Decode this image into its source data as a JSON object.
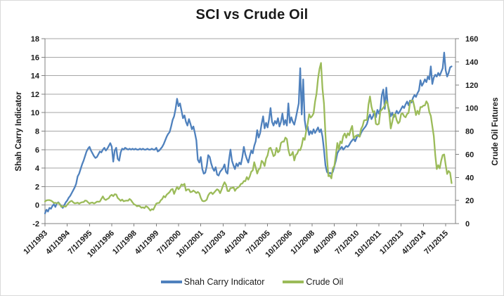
{
  "title": "SCI vs Crude Oil",
  "colors": {
    "sci_line": "#4F81BD",
    "crude_line": "#9BBB59",
    "gridline": "#A6A6A6",
    "axis_line": "#808080",
    "text": "#1a1a1a",
    "frame_border": "#d9d9d9",
    "background": "#ffffff"
  },
  "left_axis": {
    "label": "Shah  Carry  Indicator",
    "min": -2,
    "max": 18,
    "step": 2,
    "ticks": [
      "18",
      "16",
      "14",
      "12",
      "10",
      "8",
      "6",
      "4",
      "2",
      "0",
      "-2"
    ]
  },
  "right_axis": {
    "label": "Crude Oil Futures",
    "min": 0,
    "max": 160,
    "step": 20,
    "ticks": [
      "160",
      "140",
      "120",
      "100",
      "80",
      "60",
      "40",
      "20",
      "0"
    ]
  },
  "x_axis": {
    "tick_labels": [
      "1/1/1993",
      "4/1/1994",
      "7/1/1995",
      "10/1/1996",
      "1/1/1998",
      "4/1/1999",
      "7/1/2000",
      "10/1/2001",
      "1/1/2003",
      "4/1/2004",
      "7/1/2005",
      "10/1/2006",
      "1/1/2008",
      "4/1/2009",
      "7/1/2010",
      "10/1/2011",
      "1/1/2013",
      "4/1/2014",
      "7/1/2015"
    ],
    "tick_interval_months": 15
  },
  "legend": [
    {
      "label": "Shah Carry Indicator",
      "color_key": "sci_line"
    },
    {
      "label": "Crude Oil",
      "color_key": "crude_line"
    }
  ],
  "chart_data": {
    "type": "line",
    "title": "SCI vs Crude Oil",
    "x_start": "1/1/1993",
    "x_frequency": "monthly",
    "x_tick_labels": [
      "1/1/1993",
      "4/1/1994",
      "7/1/1995",
      "10/1/1996",
      "1/1/1998",
      "4/1/1999",
      "7/1/2000",
      "10/1/2001",
      "1/1/2003",
      "4/1/2004",
      "7/1/2005",
      "10/1/2006",
      "1/1/2008",
      "4/1/2009",
      "7/1/2010",
      "10/1/2011",
      "1/1/2013",
      "4/1/2014",
      "7/1/2015"
    ],
    "left_ylim": [
      -2,
      18
    ],
    "right_ylim": [
      0,
      160
    ],
    "grid": "horizontal",
    "legend_position": "bottom",
    "series": [
      {
        "name": "Shah Carry Indicator",
        "axis": "left",
        "color": "#4F81BD",
        "values": [
          -0.9,
          -0.5,
          -0.7,
          -0.3,
          -0.4,
          -0.1,
          0.1,
          -0.2,
          0.2,
          0.3,
          0.1,
          -0.1,
          -0.3,
          0.0,
          0.3,
          0.5,
          0.8,
          1.0,
          1.3,
          1.6,
          1.9,
          2.3,
          3.1,
          3.4,
          3.9,
          4.4,
          4.8,
          5.3,
          5.8,
          6.1,
          6.3,
          5.9,
          5.6,
          5.3,
          5.1,
          5.2,
          5.5,
          5.8,
          5.7,
          6.0,
          6.2,
          5.9,
          6.1,
          6.4,
          6.7,
          6.3,
          4.7,
          5.9,
          6.2,
          5.0,
          4.8,
          5.7,
          6.1,
          6.0,
          6.2,
          6.1,
          6.0,
          6.1,
          6.0,
          6.1,
          6.0,
          6.1,
          6.0,
          6.0,
          6.1,
          6.0,
          6.1,
          6.0,
          6.0,
          6.1,
          6.0,
          6.0,
          6.1,
          6.0,
          6.0,
          6.2,
          5.8,
          5.9,
          6.1,
          6.3,
          6.6,
          7.0,
          7.4,
          7.7,
          7.9,
          8.5,
          9.2,
          9.6,
          10.4,
          11.5,
          10.7,
          11.0,
          10.2,
          9.4,
          9.7,
          9.0,
          8.6,
          9.3,
          8.8,
          8.2,
          8.5,
          7.8,
          7.0,
          4.9,
          4.6,
          5.2,
          3.9,
          3.4,
          3.5,
          4.2,
          5.4,
          5.2,
          4.5,
          4.0,
          3.7,
          4.1,
          3.3,
          3.2,
          3.6,
          3.8,
          4.0,
          4.4,
          3.6,
          3.4,
          4.9,
          6.0,
          4.8,
          4.3,
          3.9,
          4.5,
          4.2,
          4.6,
          4.4,
          5.2,
          6.3,
          5.5,
          5.0,
          4.6,
          5.3,
          5.9,
          5.6,
          6.4,
          6.9,
          8.1,
          7.3,
          7.8,
          8.8,
          9.6,
          8.3,
          8.9,
          8.4,
          9.3,
          10.5,
          9.0,
          8.6,
          9.1,
          8.8,
          9.4,
          8.5,
          9.0,
          9.9,
          8.7,
          9.2,
          8.6,
          11.0,
          8.9,
          9.5,
          9.0,
          8.7,
          9.4,
          10.2,
          11.0,
          14.8,
          9.8,
          13.6,
          9.2,
          8.1,
          8.5,
          7.6,
          8.0,
          7.7,
          8.2,
          7.8,
          8.1,
          8.4,
          7.9,
          8.2,
          7.4,
          6.0,
          4.3,
          3.6,
          3.4,
          3.5,
          3.4,
          3.6,
          4.2,
          4.8,
          5.6,
          5.9,
          6.1,
          6.3,
          6.0,
          6.2,
          6.4,
          6.3,
          6.5,
          6.8,
          7.0,
          7.2,
          6.9,
          7.3,
          7.6,
          7.4,
          7.8,
          8.1,
          8.3,
          8.5,
          8.8,
          9.4,
          9.8,
          9.3,
          9.6,
          10.1,
          9.5,
          10.3,
          9.9,
          10.4,
          11.9,
          12.5,
          10.4,
          12.7,
          10.8,
          10.2,
          9.6,
          10.0,
          9.5,
          9.8,
          10.2,
          9.9,
          10.1,
          10.4,
          10.7,
          10.5,
          10.9,
          11.2,
          10.8,
          11.3,
          11.1,
          11.6,
          11.9,
          11.7,
          12.1,
          12.4,
          13.5,
          12.9,
          13.2,
          13.6,
          13.3,
          13.9,
          13.6,
          15.0,
          13.1,
          13.8,
          14.1,
          13.9,
          14.3,
          14.0,
          14.4,
          14.8,
          16.5,
          14.6,
          13.9,
          14.3,
          14.9,
          15.0
        ]
      },
      {
        "name": "Crude Oil",
        "axis": "right",
        "color": "#9BBB59",
        "values": [
          19.1,
          20.1,
          20.3,
          20.3,
          19.9,
          19.1,
          17.9,
          18.0,
          17.5,
          18.1,
          16.7,
          14.5,
          15.0,
          14.8,
          14.7,
          16.4,
          17.9,
          19.1,
          19.7,
          18.4,
          17.5,
          17.7,
          18.1,
          17.2,
          18.0,
          18.5,
          18.6,
          19.9,
          19.7,
          18.4,
          17.3,
          18.0,
          18.2,
          17.4,
          18.0,
          19.0,
          18.9,
          19.1,
          21.4,
          23.5,
          21.2,
          20.4,
          21.3,
          22.0,
          24.0,
          24.9,
          23.7,
          25.4,
          25.2,
          22.2,
          21.0,
          19.7,
          20.8,
          19.3,
          19.7,
          19.9,
          19.8,
          21.3,
          20.2,
          18.3,
          16.7,
          16.1,
          15.0,
          15.4,
          14.9,
          13.7,
          14.1,
          13.4,
          15.0,
          14.4,
          13.0,
          11.3,
          12.5,
          12.0,
          14.7,
          17.3,
          17.8,
          17.9,
          20.1,
          21.3,
          23.8,
          22.7,
          25.0,
          26.1,
          27.3,
          29.4,
          29.9,
          25.7,
          28.8,
          31.8,
          29.7,
          31.3,
          33.9,
          33.1,
          34.4,
          28.5,
          29.6,
          29.6,
          27.2,
          27.5,
          28.6,
          27.6,
          26.4,
          27.4,
          26.2,
          22.2,
          19.7,
          19.3,
          19.7,
          20.7,
          24.4,
          26.3,
          27.0,
          25.5,
          26.9,
          28.4,
          29.7,
          28.9,
          26.3,
          29.4,
          33.0,
          35.8,
          33.5,
          28.2,
          28.1,
          30.7,
          30.8,
          31.6,
          28.3,
          30.3,
          31.1,
          32.1,
          34.3,
          34.7,
          36.8,
          36.7,
          40.3,
          38.0,
          40.8,
          44.9,
          46.0,
          53.1,
          48.5,
          43.3,
          46.8,
          48.0,
          54.3,
          53.0,
          49.8,
          56.3,
          59.0,
          65.0,
          65.6,
          62.4,
          58.3,
          59.4,
          65.5,
          61.6,
          62.9,
          69.7,
          70.9,
          70.9,
          74.4,
          73.1,
          63.9,
          58.9,
          59.4,
          62.0,
          54.6,
          59.3,
          60.6,
          64.0,
          63.5,
          67.5,
          74.1,
          72.4,
          79.9,
          86.2,
          94.6,
          91.7,
          93.0,
          95.4,
          105.5,
          112.6,
          125.4,
          133.9,
          139.0,
          116.7,
          103.8,
          76.7,
          57.4,
          41.0,
          41.7,
          39.1,
          48.0,
          49.8,
          59.2,
          69.7,
          64.1,
          71.1,
          69.5,
          75.8,
          78.0,
          74.3,
          78.2,
          76.4,
          81.2,
          84.5,
          73.8,
          75.4,
          76.4,
          75.9,
          75.2,
          81.9,
          84.3,
          89.2,
          89.6,
          89.7,
          102.9,
          110.0,
          101.3,
          96.3,
          97.3,
          86.3,
          85.6,
          86.4,
          97.2,
          98.6,
          100.3,
          102.3,
          106.2,
          103.3,
          94.7,
          82.3,
          87.9,
          94.1,
          94.6,
          89.5,
          86.7,
          88.2,
          94.8,
          95.3,
          92.9,
          92.0,
          94.8,
          95.8,
          104.7,
          106.6,
          106.3,
          100.5,
          93.9,
          97.6,
          94.6,
          100.8,
          100.8,
          102.1,
          102.2,
          105.8,
          103.6,
          96.5,
          93.2,
          84.4,
          75.8,
          59.3,
          47.2,
          50.6,
          47.8,
          54.5,
          59.3,
          59.8,
          50.9,
          42.9,
          45.5,
          44.0,
          35.0
        ]
      }
    ]
  }
}
